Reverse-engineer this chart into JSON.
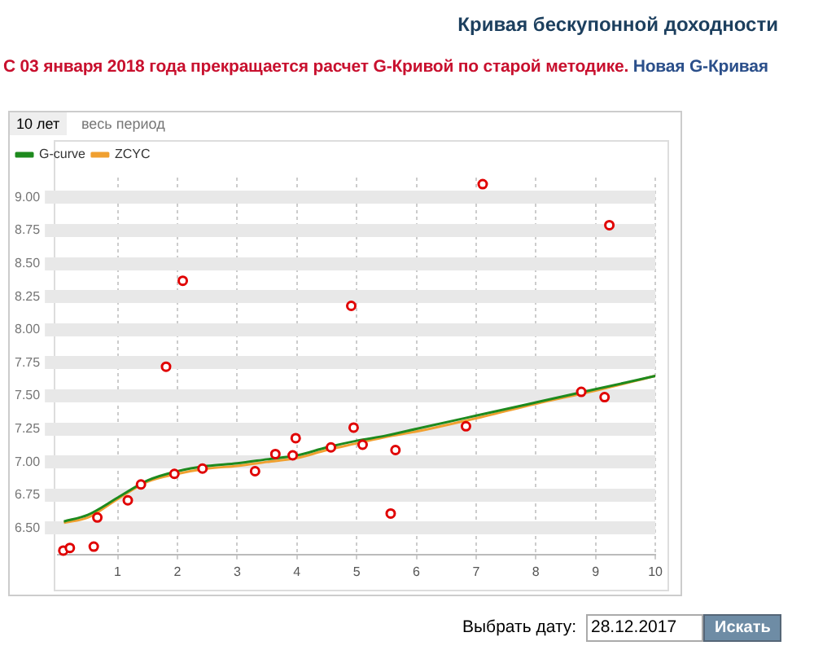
{
  "chart_data": {
    "type": "scatter",
    "title": "Кривая бескупонной доходности",
    "subtitle": "С 03 января 2018 года прекращается расчет G-Кривой по старой методике.",
    "annotations": [
      "Новая G-Кривая",
      "10 лет",
      "весь период",
      "Выбрать дату:",
      "28.12.2017",
      "Искать"
    ],
    "xlim": [
      0,
      10
    ],
    "xticks": [
      1,
      2,
      3,
      4,
      5,
      6,
      7,
      8,
      9,
      10
    ],
    "ylim": [
      6.3,
      9.15
    ],
    "yticks": [
      {
        "value": 6.5,
        "label": "6.50"
      },
      6.75,
      {
        "value": 7,
        "label": "7.00"
      },
      7.25,
      {
        "value": 7.5,
        "label": "7.50"
      },
      7.75,
      {
        "value": 8,
        "label": "8.00"
      },
      8.25,
      {
        "value": 8.5,
        "label": "8.50"
      },
      8.75,
      {
        "value": 9,
        "label": "9.00"
      }
    ],
    "grid": true,
    "legend": "top left",
    "marker": "circle",
    "series": [
      {
        "name": "G-curve",
        "type": "line",
        "color": "#1e8a1e",
        "marker": "none",
        "x": [
          0.1,
          0.5,
          1,
          1.5,
          2,
          2.5,
          3,
          3.5,
          4,
          4.5,
          5,
          5.5,
          6,
          7,
          8,
          9,
          10
        ],
        "values": [
          6.55,
          6.6,
          6.73,
          6.86,
          6.93,
          6.97,
          6.99,
          7.02,
          7.05,
          7.11,
          7.16,
          7.2,
          7.25,
          7.35,
          7.45,
          7.55,
          7.65
        ]
      },
      {
        "name": "ZCYC",
        "type": "line",
        "color": "#f0a030",
        "marker": "none",
        "x": [
          0.1,
          0.5,
          1,
          1.5,
          2,
          2.5,
          3,
          3.5,
          4,
          4.5,
          5,
          5.5,
          6,
          7,
          8,
          9,
          10
        ],
        "values": [
          6.54,
          6.58,
          6.72,
          6.85,
          6.91,
          6.95,
          6.97,
          7.0,
          7.03,
          7.09,
          7.14,
          7.19,
          7.23,
          7.33,
          7.44,
          7.54,
          7.65
        ]
      },
      {
        "type": "scatter",
        "color": "#e00000",
        "x": [
          0.09,
          0.2,
          0.6,
          0.66,
          1.17,
          1.39,
          1.81,
          1.95,
          2.09,
          2.42,
          3.3,
          3.64,
          3.93,
          3.98,
          4.57,
          4.91,
          4.95,
          5.1,
          5.57,
          5.65,
          6.83,
          7.11,
          8.76,
          9.15,
          9.23
        ],
        "values": [
          6.33,
          6.35,
          6.36,
          6.58,
          6.71,
          6.83,
          7.72,
          6.91,
          8.37,
          6.95,
          6.93,
          7.06,
          7.05,
          7.18,
          7.11,
          8.18,
          7.26,
          7.13,
          6.61,
          7.09,
          7.27,
          9.1,
          7.53,
          7.49,
          8.79
        ]
      }
    ]
  }
}
